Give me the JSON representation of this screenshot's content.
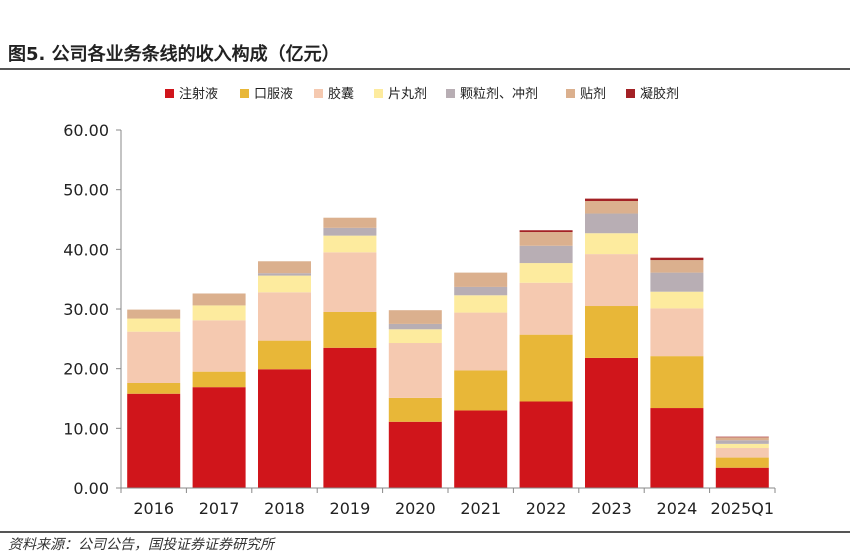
{
  "figure": {
    "title": "图5. 公司各业务条线的收入构成（亿元）",
    "source": "资料来源：公司公告，国投证券证券研究所"
  },
  "chart_data": {
    "type": "bar",
    "stacked": true,
    "categories": [
      "2016",
      "2017",
      "2018",
      "2019",
      "2020",
      "2021",
      "2022",
      "2023",
      "2024",
      "2025Q1"
    ],
    "ylim": [
      0,
      60
    ],
    "yticks": [
      "0.00",
      "10.00",
      "20.00",
      "30.00",
      "40.00",
      "50.00",
      "60.00"
    ],
    "legend_position": "top",
    "series": [
      {
        "name": "注射液",
        "color": "#d0151b",
        "values": [
          15.8,
          16.9,
          19.9,
          23.5,
          11.1,
          13.0,
          14.5,
          21.8,
          13.4,
          3.4
        ]
      },
      {
        "name": "口服液",
        "color": "#e8b738",
        "values": [
          1.8,
          2.6,
          4.8,
          6.0,
          4.0,
          6.7,
          11.2,
          8.7,
          8.7,
          1.7
        ]
      },
      {
        "name": "胶囊",
        "color": "#f5c9b0",
        "values": [
          8.6,
          8.6,
          8.1,
          10.0,
          9.2,
          9.7,
          8.7,
          8.7,
          8.0,
          1.6
        ]
      },
      {
        "name": "片丸剂",
        "color": "#fdeb9e",
        "values": [
          2.2,
          2.5,
          2.8,
          2.8,
          2.3,
          2.9,
          3.3,
          3.5,
          2.8,
          0.7
        ]
      },
      {
        "name": "颗粒剂、冲剂",
        "color": "#b8aeb4",
        "values": [
          0.0,
          0.0,
          0.4,
          1.3,
          0.9,
          1.4,
          2.9,
          3.3,
          3.2,
          0.6
        ]
      },
      {
        "name": "贴剂",
        "color": "#dbb08e",
        "values": [
          1.5,
          2.0,
          2.0,
          1.7,
          2.3,
          2.4,
          2.3,
          2.1,
          2.1,
          0.5
        ]
      },
      {
        "name": "凝胶剂",
        "color": "#a32125",
        "values": [
          0.0,
          0.0,
          0.0,
          0.0,
          0.0,
          0.0,
          0.3,
          0.4,
          0.4,
          0.1
        ]
      }
    ]
  }
}
